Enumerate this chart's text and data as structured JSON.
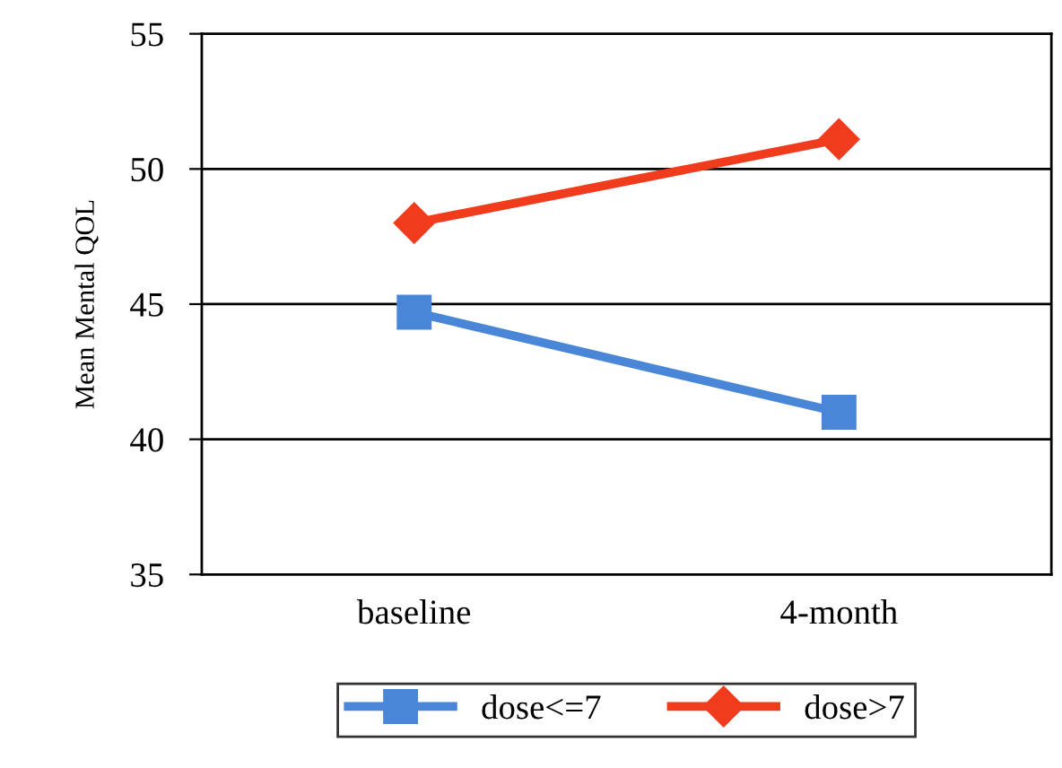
{
  "chart_data": {
    "type": "line",
    "ylabel": "Mean Mental QOL",
    "categories": [
      "baseline",
      "4-month"
    ],
    "series": [
      {
        "name": "dose<=7",
        "color": "#4a86d8",
        "values": [
          44.7,
          41.0
        ],
        "marker": "square"
      },
      {
        "name": "dose>7",
        "color": "#f03c1c",
        "values": [
          48.0,
          51.1
        ],
        "marker": "diamond"
      }
    ],
    "ylim": [
      35,
      55
    ],
    "yticks": [
      35,
      40,
      45,
      50,
      55
    ],
    "grid": "y",
    "legend": "bottom",
    "line_style": "solid"
  }
}
